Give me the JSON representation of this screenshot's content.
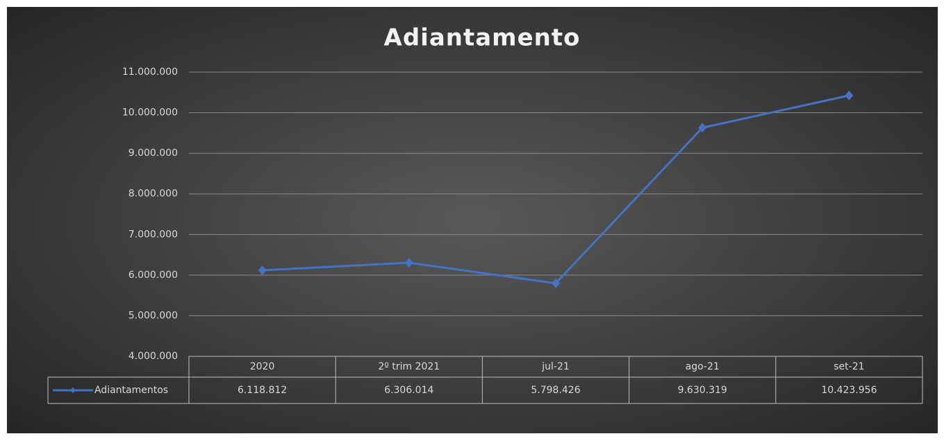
{
  "chart_data": {
    "type": "line",
    "title": "Adiantamento",
    "categories": [
      "2020",
      "2º trim 2021",
      "jul-21",
      "ago-21",
      "set-21"
    ],
    "series": [
      {
        "name": "Adiantamentos",
        "color": "#4472c4",
        "values": [
          6118812,
          6306014,
          5798426,
          9630319,
          10423956
        ],
        "value_labels": [
          "6.118.812",
          "6.306.014",
          "5.798.426",
          "9.630.319",
          "10.423.956"
        ]
      }
    ],
    "ylim": [
      4000000,
      11000000
    ],
    "yticks": [
      {
        "value": 4000000,
        "label": "4.000.000"
      },
      {
        "value": 5000000,
        "label": "5.000.000"
      },
      {
        "value": 6000000,
        "label": "6.000.000"
      },
      {
        "value": 7000000,
        "label": "7.000.000"
      },
      {
        "value": 8000000,
        "label": "8.000.000"
      },
      {
        "value": 9000000,
        "label": "9.000.000"
      },
      {
        "value": 10000000,
        "label": "10.000.000"
      },
      {
        "value": 11000000,
        "label": "11.000.000"
      }
    ],
    "grid": true
  }
}
